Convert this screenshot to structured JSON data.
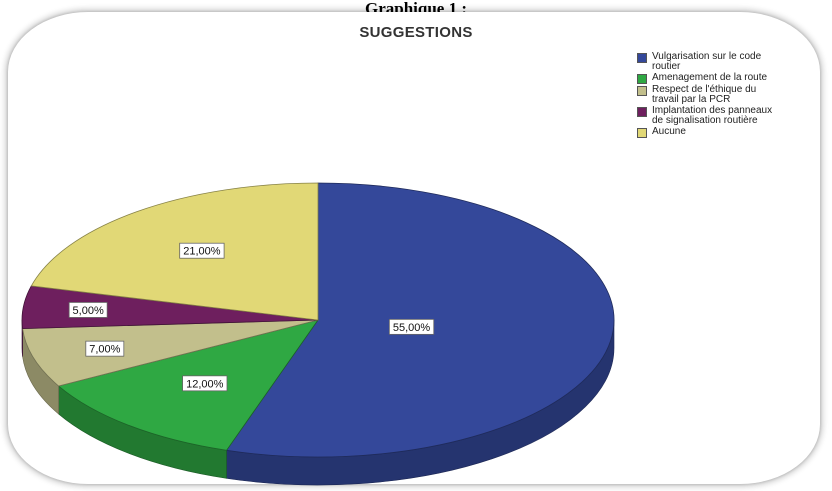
{
  "caption": "Graphique 1 :",
  "chart_data": {
    "type": "pie",
    "title": "SUGGESTIONS",
    "legend_position": "top-right",
    "slices": [
      {
        "label": "Vulgarisation sur le code\nroutier",
        "value": 55.0,
        "display": "55,00%",
        "color": "#34489a"
      },
      {
        "label": "Amenagement de la route",
        "value": 12.0,
        "display": "12,00%",
        "color": "#2fa843"
      },
      {
        "label": "Respect de l'éthique du\ntravail  par la PCR",
        "value": 7.0,
        "display": "7,00%",
        "color": "#c2bf8c"
      },
      {
        "label": "Implantation des panneaux\nde signalisation routière",
        "value": 5.0,
        "display": "5,00%",
        "color": "#6e1f5e"
      },
      {
        "label": "Aucune",
        "value": 21.0,
        "display": "21,00%",
        "color": "#e1d876"
      }
    ]
  }
}
